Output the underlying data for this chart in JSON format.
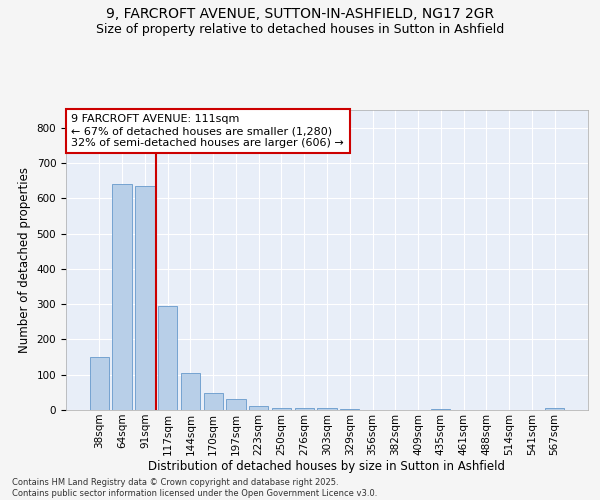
{
  "title_line1": "9, FARCROFT AVENUE, SUTTON-IN-ASHFIELD, NG17 2GR",
  "title_line2": "Size of property relative to detached houses in Sutton in Ashfield",
  "xlabel": "Distribution of detached houses by size in Sutton in Ashfield",
  "ylabel": "Number of detached properties",
  "categories": [
    "38sqm",
    "64sqm",
    "91sqm",
    "117sqm",
    "144sqm",
    "170sqm",
    "197sqm",
    "223sqm",
    "250sqm",
    "276sqm",
    "303sqm",
    "329sqm",
    "356sqm",
    "382sqm",
    "409sqm",
    "435sqm",
    "461sqm",
    "488sqm",
    "514sqm",
    "541sqm",
    "567sqm"
  ],
  "values": [
    150,
    640,
    635,
    295,
    105,
    47,
    31,
    12,
    7,
    7,
    7,
    3,
    0,
    0,
    0,
    3,
    0,
    0,
    0,
    0,
    6
  ],
  "bar_color": "#b8cfe8",
  "bar_edge_color": "#6699cc",
  "vline_color": "#cc0000",
  "annotation_text": "9 FARCROFT AVENUE: 111sqm\n← 67% of detached houses are smaller (1,280)\n32% of semi-detached houses are larger (606) →",
  "annotation_box_color": "#ffffff",
  "annotation_box_edge_color": "#cc0000",
  "ylim": [
    0,
    850
  ],
  "yticks": [
    0,
    100,
    200,
    300,
    400,
    500,
    600,
    700,
    800
  ],
  "background_color": "#e8eef8",
  "grid_color": "#ffffff",
  "footer_text": "Contains HM Land Registry data © Crown copyright and database right 2025.\nContains public sector information licensed under the Open Government Licence v3.0.",
  "title_fontsize": 10,
  "subtitle_fontsize": 9,
  "axis_label_fontsize": 8.5,
  "tick_fontsize": 7.5,
  "annotation_fontsize": 8,
  "footer_fontsize": 6
}
